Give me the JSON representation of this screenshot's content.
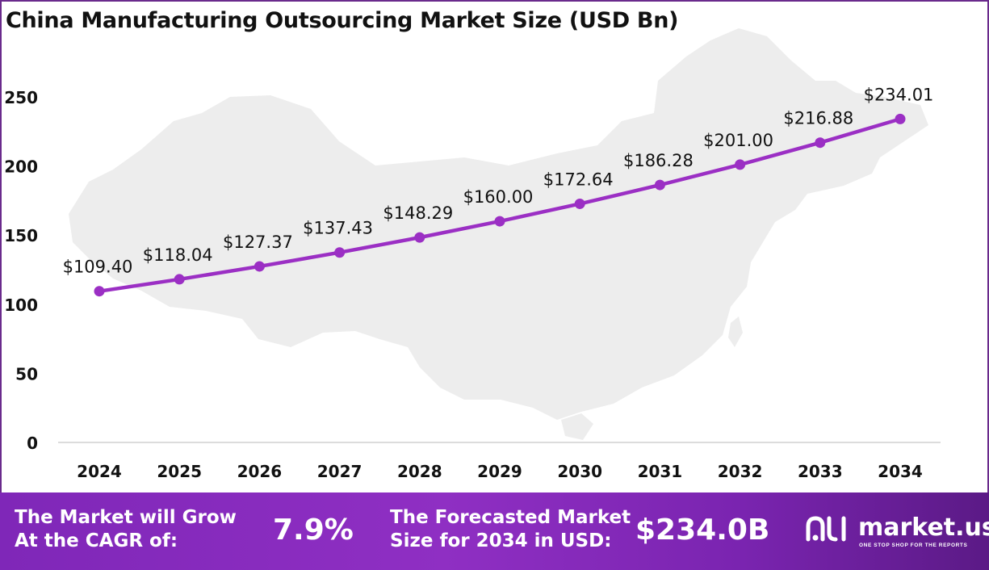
{
  "chart_data": {
    "type": "line",
    "title": "China Manufacturing Outsourcing Market Size (USD Bn)",
    "xlabel": "",
    "ylabel": "",
    "x": [
      "2024",
      "2025",
      "2026",
      "2027",
      "2028",
      "2029",
      "2030",
      "2031",
      "2032",
      "2033",
      "2034"
    ],
    "series": [
      {
        "values": [
          109.4,
          118.04,
          127.37,
          137.43,
          148.29,
          160.0,
          172.64,
          186.28,
          201.0,
          216.88,
          234.01
        ],
        "labels": [
          "$109.40",
          "$118.04",
          "$127.37",
          "$137.43",
          "$148.29",
          "$160.00",
          "$172.64",
          "$186.28",
          "$201.00",
          "$216.88",
          "$234.01"
        ],
        "color": "#9b2fc4"
      }
    ],
    "yticks": [
      "0",
      "50",
      "100",
      "150",
      "200",
      "250"
    ],
    "ylim": [
      0,
      250
    ],
    "grid": false,
    "background": "China map silhouette"
  },
  "footer": {
    "cagr_label_line1": "The Market will Grow",
    "cagr_label_line2": "At the CAGR of:",
    "cagr_value": "7.9%",
    "forecast_label_line1": "The Forecasted Market",
    "forecast_label_line2": "Size for 2034 in USD:",
    "forecast_value": "$234.0B"
  },
  "brand": {
    "name": "market.us",
    "tagline": "ONE STOP SHOP FOR THE REPORTS",
    "icon": "market-us-logo-icon"
  },
  "colors": {
    "accent": "#9b2fc4",
    "frame": "#6a2a8c",
    "map": "#ededed"
  }
}
